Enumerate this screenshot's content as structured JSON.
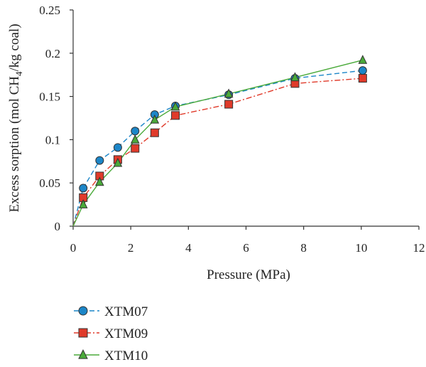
{
  "chart_data": {
    "type": "line",
    "xlabel": "Pressure (MPa)",
    "ylabel": {
      "prefix": "Excess sorption (mol CH",
      "subscript": "4",
      "suffix": "/kg coal)"
    },
    "xlim": [
      0,
      12
    ],
    "ylim": [
      0,
      0.25
    ],
    "x_ticks": [
      "0",
      "2",
      "4",
      "6",
      "8",
      "10",
      "12"
    ],
    "y_ticks": [
      "0",
      "0.05",
      "0.1",
      "0.15",
      "0.2",
      "0.25"
    ],
    "grid": false,
    "legend_position": "bottom-left",
    "series": [
      {
        "name": "XTM07",
        "color": "#1c86c8",
        "marker": "circle",
        "line_style": "dashed",
        "x": [
          0,
          0.35,
          0.92,
          1.55,
          2.15,
          2.83,
          3.55,
          5.4,
          7.7,
          10.05
        ],
        "y": [
          0,
          0.044,
          0.076,
          0.091,
          0.11,
          0.129,
          0.139,
          0.152,
          0.171,
          0.18
        ]
      },
      {
        "name": "XTM09",
        "color": "#e03a2a",
        "marker": "square",
        "line_style": "dashdot",
        "x": [
          0,
          0.35,
          0.92,
          1.55,
          2.15,
          2.83,
          3.55,
          5.4,
          7.7,
          10.05
        ],
        "y": [
          0,
          0.033,
          0.058,
          0.077,
          0.09,
          0.108,
          0.128,
          0.141,
          0.165,
          0.171
        ]
      },
      {
        "name": "XTM10",
        "color": "#4aaa3a",
        "marker": "triangle",
        "line_style": "solid",
        "x": [
          0,
          0.35,
          0.92,
          1.55,
          2.15,
          2.83,
          3.55,
          5.4,
          7.7,
          10.05
        ],
        "y": [
          0,
          0.025,
          0.051,
          0.073,
          0.1,
          0.123,
          0.138,
          0.153,
          0.172,
          0.192
        ]
      }
    ]
  }
}
